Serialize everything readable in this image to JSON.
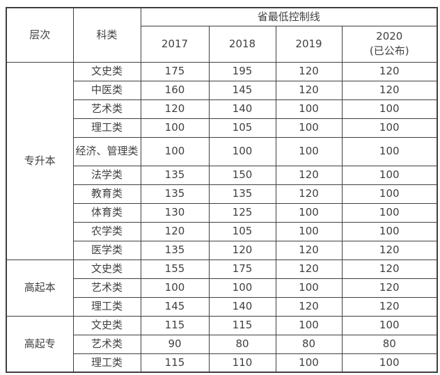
{
  "table": {
    "header": {
      "level_label": "层次",
      "category_label": "科类",
      "group_title": "省最低控制线",
      "years": [
        "2017",
        "2018",
        "2019",
        "2020"
      ],
      "last_year_note": "(已公布)"
    },
    "groups": [
      {
        "level": "专升本",
        "rows": [
          {
            "category": "文史类",
            "values": [
              "175",
              "195",
              "120",
              "120"
            ]
          },
          {
            "category": "中医类",
            "values": [
              "160",
              "145",
              "120",
              "120"
            ]
          },
          {
            "category": "艺术类",
            "values": [
              "120",
              "140",
              "100",
              "100"
            ]
          },
          {
            "category": "理工类",
            "values": [
              "100",
              "105",
              "100",
              "100"
            ]
          },
          {
            "category": "经济、管理类",
            "values": [
              "100",
              "100",
              "100",
              "100"
            ]
          },
          {
            "category": "法学类",
            "values": [
              "135",
              "150",
              "120",
              "100"
            ]
          },
          {
            "category": "教育类",
            "values": [
              "135",
              "135",
              "120",
              "100"
            ]
          },
          {
            "category": "体育类",
            "values": [
              "130",
              "125",
              "100",
              "100"
            ]
          },
          {
            "category": "农学类",
            "values": [
              "120",
              "105",
              "100",
              "100"
            ]
          },
          {
            "category": "医学类",
            "values": [
              "135",
              "120",
              "120",
              "120"
            ]
          }
        ]
      },
      {
        "level": "高起本",
        "rows": [
          {
            "category": "文史类",
            "values": [
              "155",
              "175",
              "120",
              "120"
            ]
          },
          {
            "category": "艺术类",
            "values": [
              "100",
              "100",
              "100",
              "120"
            ]
          },
          {
            "category": "理工类",
            "values": [
              "145",
              "140",
              "120",
              "120"
            ]
          }
        ]
      },
      {
        "level": "高起专",
        "rows": [
          {
            "category": "文史类",
            "values": [
              "115",
              "115",
              "100",
              "100"
            ]
          },
          {
            "category": "艺术类",
            "values": [
              "90",
              "80",
              "80",
              "80"
            ]
          },
          {
            "category": "理工类",
            "values": [
              "115",
              "110",
              "100",
              "100"
            ]
          }
        ]
      }
    ]
  },
  "colors": {
    "border": "#3e3e3e",
    "text": "#404040",
    "background": "#ffffff"
  }
}
